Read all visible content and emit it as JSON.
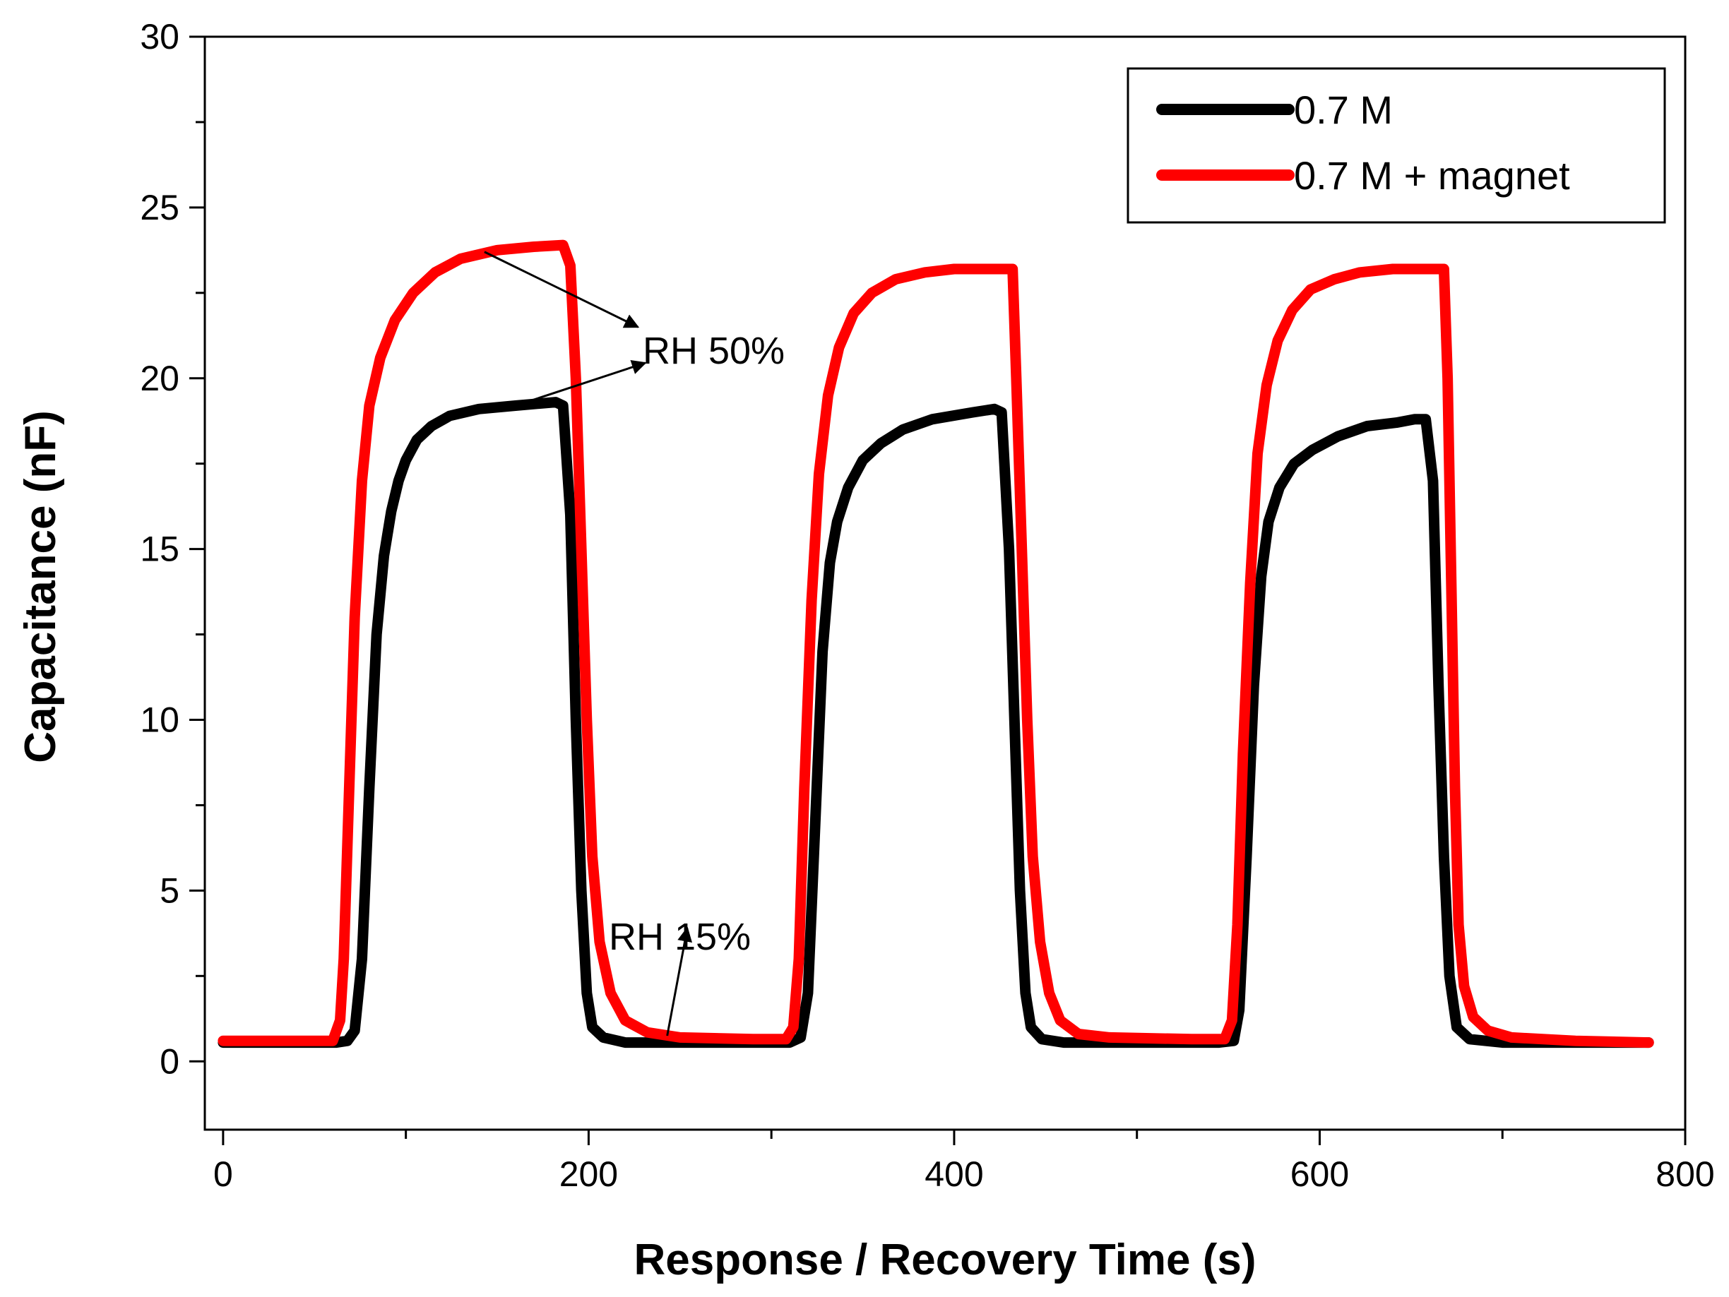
{
  "chart_data": {
    "type": "line",
    "title": "",
    "xlabel": "Response / Recovery Time (s)",
    "ylabel": "Capacitance (nF)",
    "xlim": [
      -10,
      800
    ],
    "ylim": [
      -2,
      30
    ],
    "xticks": [
      0,
      200,
      400,
      600,
      800
    ],
    "yticks": [
      0,
      5,
      10,
      15,
      20,
      25,
      30
    ],
    "x_minor_step": 100,
    "legend_position": "top-right",
    "series": [
      {
        "name": "0.7 M",
        "color": "#000000",
        "points": [
          [
            0,
            0.55
          ],
          [
            62,
            0.55
          ],
          [
            68,
            0.6
          ],
          [
            72,
            0.9
          ],
          [
            76,
            3
          ],
          [
            80,
            8
          ],
          [
            84,
            12.5
          ],
          [
            88,
            14.8
          ],
          [
            92,
            16.1
          ],
          [
            96,
            17.0
          ],
          [
            100,
            17.6
          ],
          [
            106,
            18.2
          ],
          [
            114,
            18.6
          ],
          [
            124,
            18.9
          ],
          [
            140,
            19.1
          ],
          [
            160,
            19.2
          ],
          [
            182,
            19.3
          ],
          [
            186,
            19.2
          ],
          [
            190,
            16
          ],
          [
            193,
            10
          ],
          [
            196,
            5
          ],
          [
            199,
            2
          ],
          [
            202,
            1
          ],
          [
            208,
            0.7
          ],
          [
            220,
            0.55
          ],
          [
            240,
            0.55
          ],
          [
            300,
            0.55
          ],
          [
            310,
            0.55
          ],
          [
            316,
            0.7
          ],
          [
            320,
            2
          ],
          [
            324,
            7
          ],
          [
            328,
            12
          ],
          [
            332,
            14.6
          ],
          [
            336,
            15.8
          ],
          [
            342,
            16.8
          ],
          [
            350,
            17.6
          ],
          [
            360,
            18.1
          ],
          [
            372,
            18.5
          ],
          [
            388,
            18.8
          ],
          [
            410,
            19.0
          ],
          [
            422,
            19.1
          ],
          [
            426,
            19.0
          ],
          [
            430,
            15
          ],
          [
            433,
            10
          ],
          [
            436,
            5
          ],
          [
            439,
            2
          ],
          [
            442,
            1
          ],
          [
            448,
            0.65
          ],
          [
            460,
            0.55
          ],
          [
            480,
            0.55
          ],
          [
            545,
            0.55
          ],
          [
            553,
            0.6
          ],
          [
            556,
            1.5
          ],
          [
            560,
            6
          ],
          [
            564,
            11
          ],
          [
            568,
            14.2
          ],
          [
            572,
            15.8
          ],
          [
            578,
            16.8
          ],
          [
            586,
            17.5
          ],
          [
            596,
            17.9
          ],
          [
            610,
            18.3
          ],
          [
            626,
            18.6
          ],
          [
            642,
            18.7
          ],
          [
            652,
            18.8
          ],
          [
            658,
            18.8
          ],
          [
            662,
            17
          ],
          [
            665,
            11
          ],
          [
            668,
            6
          ],
          [
            671,
            2.5
          ],
          [
            675,
            1.0
          ],
          [
            682,
            0.65
          ],
          [
            700,
            0.55
          ],
          [
            780,
            0.55
          ]
        ]
      },
      {
        "name": "0.7 M + magnet",
        "color": "#ff0000",
        "points": [
          [
            0,
            0.6
          ],
          [
            60,
            0.6
          ],
          [
            64,
            1.2
          ],
          [
            66,
            3
          ],
          [
            69,
            8
          ],
          [
            72,
            13
          ],
          [
            76,
            17
          ],
          [
            80,
            19.2
          ],
          [
            86,
            20.6
          ],
          [
            94,
            21.7
          ],
          [
            104,
            22.5
          ],
          [
            116,
            23.1
          ],
          [
            130,
            23.5
          ],
          [
            150,
            23.75
          ],
          [
            170,
            23.85
          ],
          [
            186,
            23.9
          ],
          [
            190,
            23.3
          ],
          [
            193,
            20
          ],
          [
            196,
            15
          ],
          [
            199,
            10
          ],
          [
            202,
            6
          ],
          [
            206,
            3.5
          ],
          [
            212,
            2
          ],
          [
            220,
            1.2
          ],
          [
            232,
            0.85
          ],
          [
            250,
            0.7
          ],
          [
            290,
            0.65
          ],
          [
            308,
            0.65
          ],
          [
            312,
            1
          ],
          [
            315,
            3
          ],
          [
            318,
            8
          ],
          [
            322,
            13.5
          ],
          [
            326,
            17.2
          ],
          [
            331,
            19.5
          ],
          [
            337,
            20.9
          ],
          [
            345,
            21.9
          ],
          [
            355,
            22.5
          ],
          [
            368,
            22.9
          ],
          [
            384,
            23.1
          ],
          [
            400,
            23.2
          ],
          [
            432,
            23.2
          ],
          [
            434,
            20
          ],
          [
            437,
            15
          ],
          [
            440,
            10
          ],
          [
            443,
            6
          ],
          [
            447,
            3.5
          ],
          [
            452,
            2
          ],
          [
            458,
            1.2
          ],
          [
            468,
            0.8
          ],
          [
            485,
            0.7
          ],
          [
            530,
            0.65
          ],
          [
            548,
            0.65
          ],
          [
            552,
            1.2
          ],
          [
            555,
            4
          ],
          [
            558,
            9
          ],
          [
            562,
            14
          ],
          [
            566,
            17.8
          ],
          [
            571,
            19.8
          ],
          [
            577,
            21.1
          ],
          [
            585,
            22.0
          ],
          [
            595,
            22.6
          ],
          [
            608,
            22.9
          ],
          [
            622,
            23.1
          ],
          [
            640,
            23.2
          ],
          [
            668,
            23.2
          ],
          [
            670,
            20
          ],
          [
            672,
            14
          ],
          [
            674,
            8
          ],
          [
            676,
            4
          ],
          [
            679,
            2.2
          ],
          [
            684,
            1.3
          ],
          [
            692,
            0.9
          ],
          [
            705,
            0.7
          ],
          [
            740,
            0.6
          ],
          [
            780,
            0.55
          ]
        ]
      }
    ],
    "annotations": [
      {
        "text": "RH 50%",
        "text_at": [
          615,
          21.8
        ],
        "arrows": [
          {
            "from": [
              143,
              23.7
            ],
            "to": [
              227,
              21.5
            ]
          },
          {
            "from": [
              163,
              19.25
            ],
            "to": [
              231,
              20.45
            ]
          }
        ]
      },
      {
        "text": "RH 15%",
        "text_at": [
          590,
          4.4
        ],
        "arrows": [
          {
            "from": [
              243,
              0.75
            ],
            "to": [
              254,
              3.9
            ]
          }
        ]
      }
    ]
  }
}
